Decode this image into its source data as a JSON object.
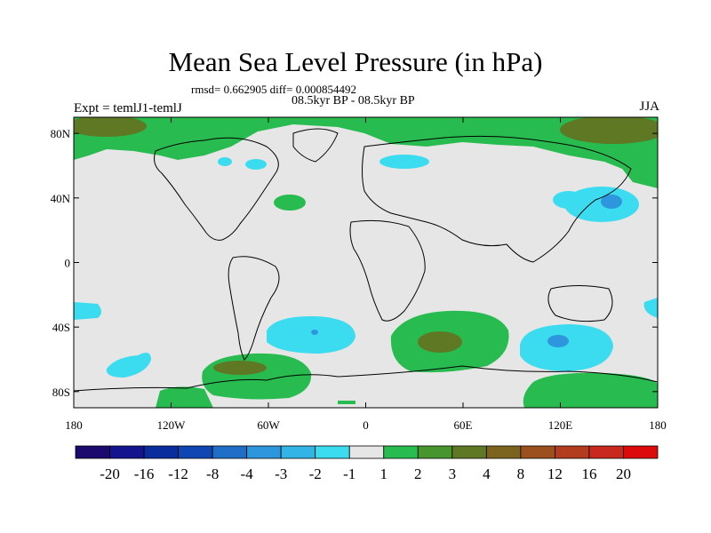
{
  "title": "Mean Sea Level Pressure (in hPa)",
  "stats_line": "rmsd= 0.662905 diff= 0.000854492",
  "period_line": "08.5kyr BP - 08.5kyr BP",
  "left_string": "Expt = temlJ1-temlJ",
  "right_string": "JJA",
  "lat_ticks": [
    {
      "value": 80,
      "label": "80N"
    },
    {
      "value": 40,
      "label": "40N"
    },
    {
      "value": 0,
      "label": "0"
    },
    {
      "value": -40,
      "label": "40S"
    },
    {
      "value": -80,
      "label": "80S"
    }
  ],
  "lon_ticks": [
    {
      "value": -180,
      "label": "180"
    },
    {
      "value": -120,
      "label": "120W"
    },
    {
      "value": -60,
      "label": "60W"
    },
    {
      "value": 0,
      "label": "0"
    },
    {
      "value": 60,
      "label": "60E"
    },
    {
      "value": 120,
      "label": "120E"
    },
    {
      "value": 180,
      "label": "180"
    }
  ],
  "colorbar": {
    "colors": [
      "#1c0a6e",
      "#14148f",
      "#0a2d9e",
      "#1046b4",
      "#1e6ec8",
      "#2d96dc",
      "#32b4e6",
      "#3cdcf0",
      "#e6e6e6",
      "#28bc50",
      "#46962d",
      "#5f7823",
      "#7d641e",
      "#9b501e",
      "#b43c1e",
      "#c8281e",
      "#dc0a0a"
    ],
    "labels": [
      "-20",
      "-16",
      "-12",
      "-8",
      "-4",
      "-3",
      "-2",
      "-1",
      "1",
      "2",
      "3",
      "4",
      "8",
      "12",
      "16",
      "20"
    ]
  },
  "colors": {
    "neutral": "#e6e6e6",
    "green": "#28bc50",
    "dark_green": "#5f7823",
    "cyan": "#3cdcf0",
    "blue": "#2d96dc"
  }
}
